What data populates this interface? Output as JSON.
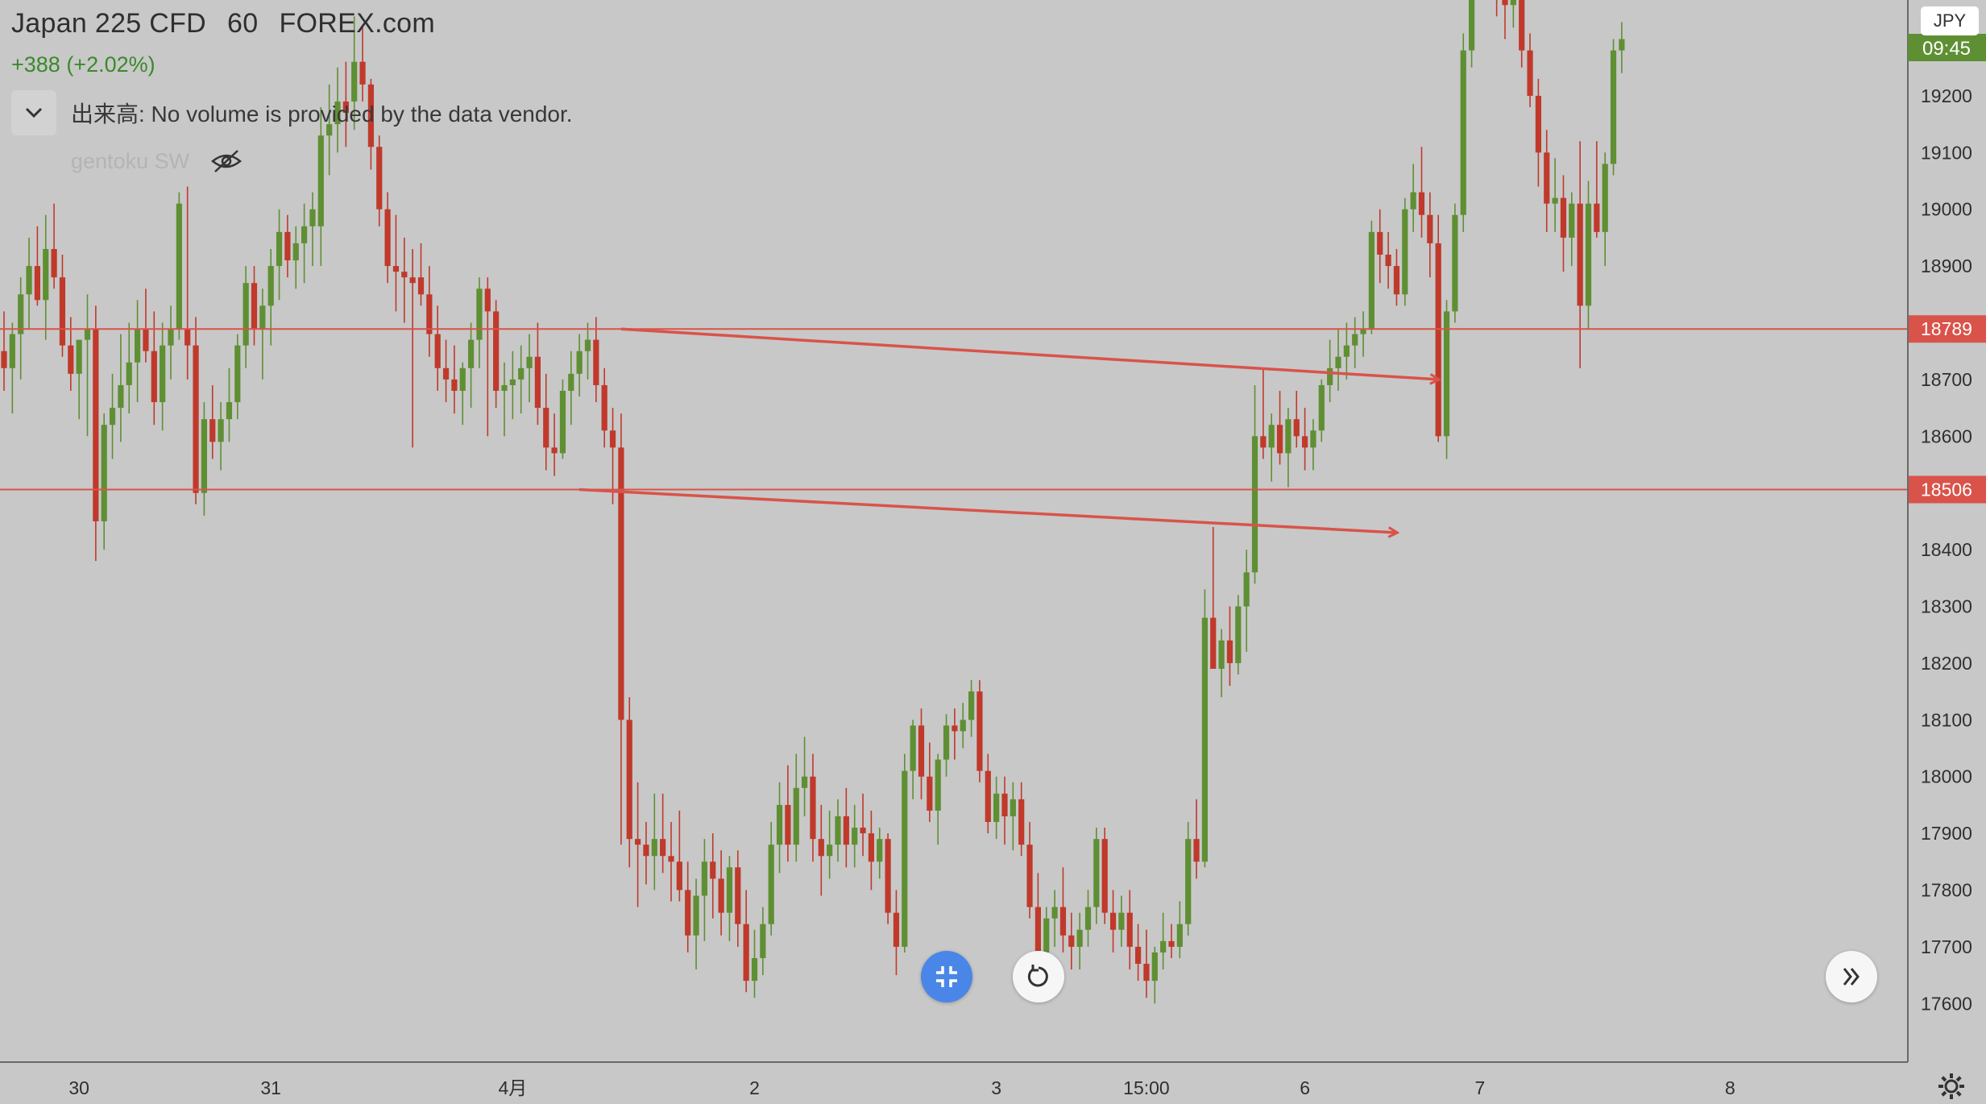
{
  "legend": {
    "symbol": "Japan 225 CFD",
    "interval": "60",
    "source": "FOREX.com",
    "change": "+388 (+2.02%)"
  },
  "volume": {
    "label": "出来高: No volume is provided by the data vendor."
  },
  "indicator": {
    "name": "gentoku SW",
    "icon": "eye-off-icon"
  },
  "price_axis": {
    "currency": "JPY",
    "clock": "09:45",
    "ticks": [
      "19200",
      "19100",
      "19000",
      "18900",
      "18700",
      "18600",
      "18400",
      "18300",
      "18200",
      "18100",
      "18000",
      "17900",
      "17800",
      "17700",
      "17600"
    ],
    "markers": [
      {
        "label": "18789",
        "color": "#d9534a"
      },
      {
        "label": "18506",
        "color": "#d9534a"
      }
    ]
  },
  "colors": {
    "up": "#5f8f33",
    "down": "#c0392b",
    "level": "#d9534a",
    "background": "#c8c8c8",
    "accent": "#4a86e8"
  },
  "chart_data": {
    "type": "candlestick",
    "title": "",
    "ylim": [
      17500,
      19420
    ],
    "levels": [
      18789,
      18506
    ],
    "x_labels": [
      {
        "label": "30",
        "bar": 9
      },
      {
        "label": "31",
        "bar": 32
      },
      {
        "label": "4月",
        "bar": 61
      },
      {
        "label": "2",
        "bar": 90
      },
      {
        "label": "3",
        "bar": 119
      },
      {
        "label": "15:00",
        "bar": 137
      },
      {
        "label": "6",
        "bar": 156
      },
      {
        "label": "7",
        "bar": 177
      },
      {
        "label": "8",
        "bar": 207
      }
    ],
    "arrows": [
      {
        "from_bar": 74,
        "from_price": 18789,
        "to_bar": 172,
        "to_price": 18700
      },
      {
        "from_bar": 69,
        "from_price": 18506,
        "to_bar": 167,
        "to_price": 18430
      }
    ],
    "candles": [
      [
        18750,
        18820,
        18680,
        18720
      ],
      [
        18720,
        18800,
        18640,
        18780
      ],
      [
        18780,
        18880,
        18700,
        18850
      ],
      [
        18850,
        18950,
        18790,
        18900
      ],
      [
        18900,
        18970,
        18830,
        18840
      ],
      [
        18840,
        18990,
        18770,
        18930
      ],
      [
        18930,
        19010,
        18860,
        18880
      ],
      [
        18880,
        18920,
        18740,
        18760
      ],
      [
        18760,
        18810,
        18680,
        18710
      ],
      [
        18710,
        18760,
        18630,
        18770
      ],
      [
        18770,
        18850,
        18600,
        18790
      ],
      [
        18790,
        18830,
        18380,
        18450
      ],
      [
        18450,
        18640,
        18400,
        18620
      ],
      [
        18620,
        18710,
        18560,
        18650
      ],
      [
        18650,
        18780,
        18590,
        18690
      ],
      [
        18690,
        18800,
        18640,
        18730
      ],
      [
        18730,
        18840,
        18660,
        18790
      ],
      [
        18790,
        18860,
        18730,
        18750
      ],
      [
        18750,
        18820,
        18620,
        18660
      ],
      [
        18660,
        18800,
        18610,
        18760
      ],
      [
        18760,
        18830,
        18700,
        18790
      ],
      [
        18790,
        19030,
        18770,
        19010
      ],
      [
        18790,
        19040,
        18700,
        18760
      ],
      [
        18760,
        18810,
        18480,
        18500
      ],
      [
        18500,
        18660,
        18460,
        18630
      ],
      [
        18630,
        18690,
        18560,
        18590
      ],
      [
        18590,
        18660,
        18540,
        18630
      ],
      [
        18630,
        18720,
        18590,
        18660
      ],
      [
        18660,
        18780,
        18630,
        18760
      ],
      [
        18760,
        18900,
        18720,
        18870
      ],
      [
        18870,
        18900,
        18760,
        18790
      ],
      [
        18790,
        18860,
        18700,
        18830
      ],
      [
        18830,
        18930,
        18760,
        18900
      ],
      [
        18900,
        19000,
        18840,
        18960
      ],
      [
        18960,
        18990,
        18880,
        18910
      ],
      [
        18910,
        18970,
        18860,
        18940
      ],
      [
        18940,
        19010,
        18870,
        18970
      ],
      [
        18970,
        19030,
        18900,
        19000
      ],
      [
        18970,
        19180,
        18900,
        19130
      ],
      [
        19130,
        19220,
        19060,
        19150
      ],
      [
        19150,
        19250,
        19100,
        19190
      ],
      [
        19190,
        19260,
        19110,
        19170
      ],
      [
        19190,
        19340,
        19140,
        19260
      ],
      [
        19260,
        19320,
        19190,
        19220
      ],
      [
        19220,
        19230,
        19070,
        19110
      ],
      [
        19110,
        19130,
        18970,
        19000
      ],
      [
        19000,
        19030,
        18870,
        18900
      ],
      [
        18900,
        18990,
        18820,
        18890
      ],
      [
        18890,
        18950,
        18800,
        18880
      ],
      [
        18880,
        18930,
        18580,
        18870
      ],
      [
        18880,
        18940,
        18830,
        18850
      ],
      [
        18850,
        18900,
        18740,
        18780
      ],
      [
        18780,
        18830,
        18680,
        18720
      ],
      [
        18720,
        18770,
        18660,
        18700
      ],
      [
        18700,
        18760,
        18640,
        18680
      ],
      [
        18680,
        18730,
        18620,
        18720
      ],
      [
        18720,
        18800,
        18650,
        18770
      ],
      [
        18770,
        18880,
        18720,
        18860
      ],
      [
        18860,
        18880,
        18600,
        18820
      ],
      [
        18820,
        18840,
        18650,
        18680
      ],
      [
        18680,
        18730,
        18600,
        18690
      ],
      [
        18690,
        18750,
        18630,
        18700
      ],
      [
        18700,
        18760,
        18640,
        18720
      ],
      [
        18720,
        18780,
        18660,
        18740
      ],
      [
        18740,
        18800,
        18620,
        18650
      ],
      [
        18650,
        18710,
        18540,
        18580
      ],
      [
        18580,
        18640,
        18530,
        18570
      ],
      [
        18570,
        18700,
        18560,
        18680
      ],
      [
        18680,
        18750,
        18620,
        18710
      ],
      [
        18710,
        18780,
        18670,
        18750
      ],
      [
        18750,
        18800,
        18700,
        18770
      ],
      [
        18770,
        18810,
        18660,
        18690
      ],
      [
        18690,
        18720,
        18580,
        18610
      ],
      [
        18610,
        18650,
        18480,
        18580
      ],
      [
        18580,
        18640,
        17880,
        18100
      ],
      [
        18100,
        18140,
        17840,
        17890
      ],
      [
        17890,
        17990,
        17770,
        17880
      ],
      [
        17880,
        17920,
        17810,
        17860
      ],
      [
        17860,
        17970,
        17800,
        17890
      ],
      [
        17890,
        17970,
        17830,
        17860
      ],
      [
        17860,
        17920,
        17780,
        17850
      ],
      [
        17850,
        17940,
        17780,
        17800
      ],
      [
        17800,
        17850,
        17690,
        17720
      ],
      [
        17720,
        17820,
        17660,
        17790
      ],
      [
        17790,
        17890,
        17710,
        17850
      ],
      [
        17850,
        17900,
        17750,
        17820
      ],
      [
        17820,
        17870,
        17720,
        17760
      ],
      [
        17760,
        17860,
        17710,
        17840
      ],
      [
        17840,
        17870,
        17700,
        17740
      ],
      [
        17740,
        17800,
        17620,
        17640
      ],
      [
        17640,
        17730,
        17610,
        17680
      ],
      [
        17680,
        17770,
        17650,
        17740
      ],
      [
        17740,
        17920,
        17720,
        17880
      ],
      [
        17880,
        17990,
        17830,
        17950
      ],
      [
        17950,
        18020,
        17850,
        17880
      ],
      [
        17880,
        18040,
        17850,
        17980
      ],
      [
        17980,
        18070,
        17930,
        18000
      ],
      [
        18000,
        18040,
        17850,
        17890
      ],
      [
        17890,
        17950,
        17790,
        17860
      ],
      [
        17860,
        17940,
        17820,
        17880
      ],
      [
        17880,
        17960,
        17850,
        17930
      ],
      [
        17930,
        17980,
        17840,
        17880
      ],
      [
        17880,
        17950,
        17840,
        17910
      ],
      [
        17910,
        17970,
        17860,
        17900
      ],
      [
        17900,
        17940,
        17800,
        17850
      ],
      [
        17850,
        17910,
        17820,
        17890
      ],
      [
        17890,
        17900,
        17740,
        17760
      ],
      [
        17760,
        17800,
        17650,
        17700
      ],
      [
        17700,
        18040,
        17690,
        18010
      ],
      [
        18010,
        18100,
        17960,
        18090
      ],
      [
        18090,
        18120,
        17960,
        18000
      ],
      [
        18000,
        18060,
        17920,
        17940
      ],
      [
        17940,
        18040,
        17880,
        18030
      ],
      [
        18030,
        18110,
        18000,
        18090
      ],
      [
        18090,
        18120,
        18030,
        18080
      ],
      [
        18080,
        18130,
        18050,
        18100
      ],
      [
        18100,
        18170,
        18070,
        18150
      ],
      [
        18150,
        18170,
        17990,
        18010
      ],
      [
        18010,
        18040,
        17900,
        17920
      ],
      [
        17920,
        18000,
        17890,
        17970
      ],
      [
        17970,
        18000,
        17880,
        17930
      ],
      [
        17930,
        17990,
        17870,
        17960
      ],
      [
        17960,
        17990,
        17860,
        17880
      ],
      [
        17880,
        17920,
        17750,
        17770
      ],
      [
        17770,
        17830,
        17660,
        17690
      ],
      [
        17690,
        17770,
        17660,
        17750
      ],
      [
        17750,
        17800,
        17700,
        17770
      ],
      [
        17770,
        17840,
        17690,
        17720
      ],
      [
        17720,
        17760,
        17660,
        17700
      ],
      [
        17700,
        17760,
        17660,
        17730
      ],
      [
        17730,
        17800,
        17700,
        17770
      ],
      [
        17770,
        17910,
        17740,
        17890
      ],
      [
        17890,
        17910,
        17740,
        17760
      ],
      [
        17760,
        17800,
        17690,
        17730
      ],
      [
        17730,
        17790,
        17700,
        17760
      ],
      [
        17760,
        17800,
        17660,
        17700
      ],
      [
        17700,
        17740,
        17640,
        17670
      ],
      [
        17670,
        17730,
        17610,
        17640
      ],
      [
        17640,
        17700,
        17600,
        17690
      ],
      [
        17690,
        17760,
        17660,
        17710
      ],
      [
        17710,
        17740,
        17680,
        17700
      ],
      [
        17700,
        17780,
        17680,
        17740
      ],
      [
        17740,
        17920,
        17720,
        17890
      ],
      [
        17890,
        17960,
        17820,
        17850
      ],
      [
        17850,
        18330,
        17840,
        18280
      ],
      [
        18280,
        18440,
        18200,
        18190
      ],
      [
        18190,
        18260,
        18140,
        18240
      ],
      [
        18240,
        18300,
        18160,
        18200
      ],
      [
        18200,
        18320,
        18180,
        18300
      ],
      [
        18300,
        18400,
        18220,
        18360
      ],
      [
        18360,
        18690,
        18340,
        18600
      ],
      [
        18600,
        18720,
        18560,
        18580
      ],
      [
        18580,
        18640,
        18520,
        18620
      ],
      [
        18620,
        18680,
        18550,
        18570
      ],
      [
        18570,
        18650,
        18510,
        18630
      ],
      [
        18630,
        18680,
        18580,
        18600
      ],
      [
        18600,
        18650,
        18540,
        18580
      ],
      [
        18580,
        18630,
        18540,
        18610
      ],
      [
        18610,
        18700,
        18590,
        18690
      ],
      [
        18690,
        18770,
        18660,
        18720
      ],
      [
        18720,
        18790,
        18680,
        18740
      ],
      [
        18740,
        18800,
        18700,
        18760
      ],
      [
        18760,
        18810,
        18720,
        18780
      ],
      [
        18780,
        18820,
        18740,
        18790
      ],
      [
        18790,
        18980,
        18780,
        18960
      ],
      [
        18960,
        19000,
        18870,
        18920
      ],
      [
        18920,
        18960,
        18860,
        18900
      ],
      [
        18900,
        18930,
        18830,
        18850
      ],
      [
        18850,
        19020,
        18830,
        19000
      ],
      [
        19000,
        19080,
        18960,
        19030
      ],
      [
        19030,
        19110,
        18950,
        18990
      ],
      [
        18990,
        19030,
        18880,
        18940
      ],
      [
        18940,
        18990,
        18590,
        18600
      ],
      [
        18600,
        18840,
        18560,
        18820
      ],
      [
        18820,
        19010,
        18800,
        18990
      ],
      [
        18990,
        19310,
        18960,
        19280
      ],
      [
        19280,
        19420,
        19250,
        19410
      ],
      [
        19410,
        19520,
        19380,
        19460
      ],
      [
        19460,
        19490,
        19380,
        19420
      ],
      [
        19420,
        19470,
        19340,
        19400
      ],
      [
        19400,
        19440,
        19300,
        19360
      ],
      [
        19360,
        19420,
        19320,
        19380
      ],
      [
        19380,
        19400,
        19250,
        19280
      ],
      [
        19280,
        19310,
        19180,
        19200
      ],
      [
        19200,
        19230,
        19040,
        19100
      ],
      [
        19100,
        19140,
        18960,
        19010
      ],
      [
        19010,
        19090,
        18960,
        19020
      ],
      [
        19020,
        19060,
        18890,
        18950
      ],
      [
        18950,
        19030,
        18900,
        19010
      ],
      [
        19010,
        19120,
        18720,
        18830
      ],
      [
        18830,
        19050,
        18790,
        19010
      ],
      [
        19010,
        19120,
        18950,
        18960
      ],
      [
        18960,
        19100,
        18900,
        19080
      ],
      [
        19080,
        19300,
        19060,
        19280
      ],
      [
        19280,
        19330,
        19240,
        19300
      ]
    ]
  }
}
